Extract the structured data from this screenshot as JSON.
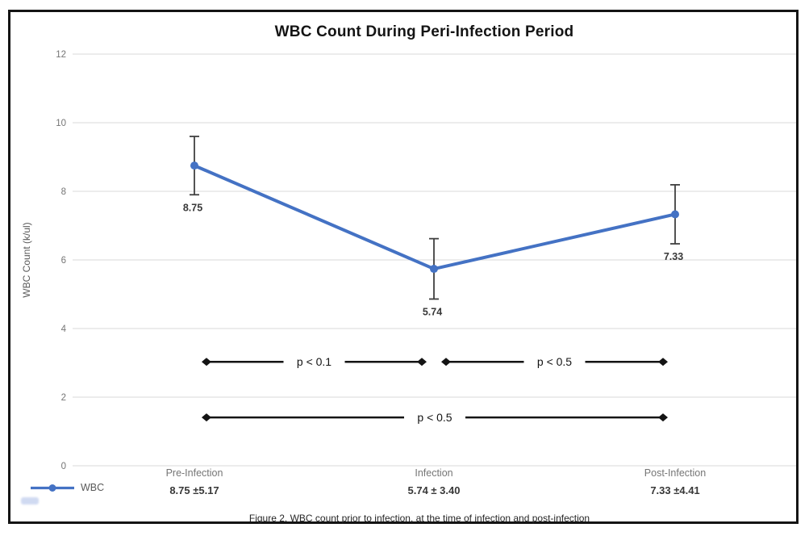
{
  "page": {
    "caption": "Figure 2. WBC count prior to infection, at the time of infection and post-infection"
  },
  "legend": {
    "series_label": "WBC"
  },
  "chart_data": {
    "type": "line",
    "title": "WBC Count During Peri-Infection Period",
    "xlabel": "",
    "ylabel": "WBC Count (k/ul)",
    "ylim": [
      0,
      12
    ],
    "yticks": [
      0,
      2,
      4,
      6,
      8,
      10,
      12
    ],
    "grid": true,
    "legend_position": "bottom-left",
    "categories": [
      "Pre-Infection",
      "Infection",
      "Post-Infection"
    ],
    "series": [
      {
        "name": "WBC",
        "color": "#4472C4",
        "values": [
          8.75,
          5.74,
          7.33
        ],
        "error_bars": [
          0.85,
          0.88,
          0.86
        ],
        "point_labels": [
          "8.75",
          "5.74",
          "7.33"
        ]
      }
    ],
    "stats_labels": [
      "8.75 ±5.17",
      "5.74 ± 3.40",
      "7.33 ±4.41"
    ],
    "significance_bars": [
      {
        "between": [
          "Pre-Infection",
          "Infection"
        ],
        "label": "p < 0.1",
        "y_value": 3.03
      },
      {
        "between": [
          "Infection",
          "Post-Infection"
        ],
        "label": "p < 0.5",
        "y_value": 3.03
      },
      {
        "between": [
          "Pre-Infection",
          "Post-Infection"
        ],
        "label": "p < 0.5",
        "y_value": 1.41
      }
    ]
  },
  "colors": {
    "series_blue": "#4472C4",
    "error_bar": "#404040",
    "gridline": "#D9D9D9",
    "axis_text": "#757575",
    "value_text": "#383838",
    "dark_text": "#141414",
    "frame_border": "#141414"
  }
}
